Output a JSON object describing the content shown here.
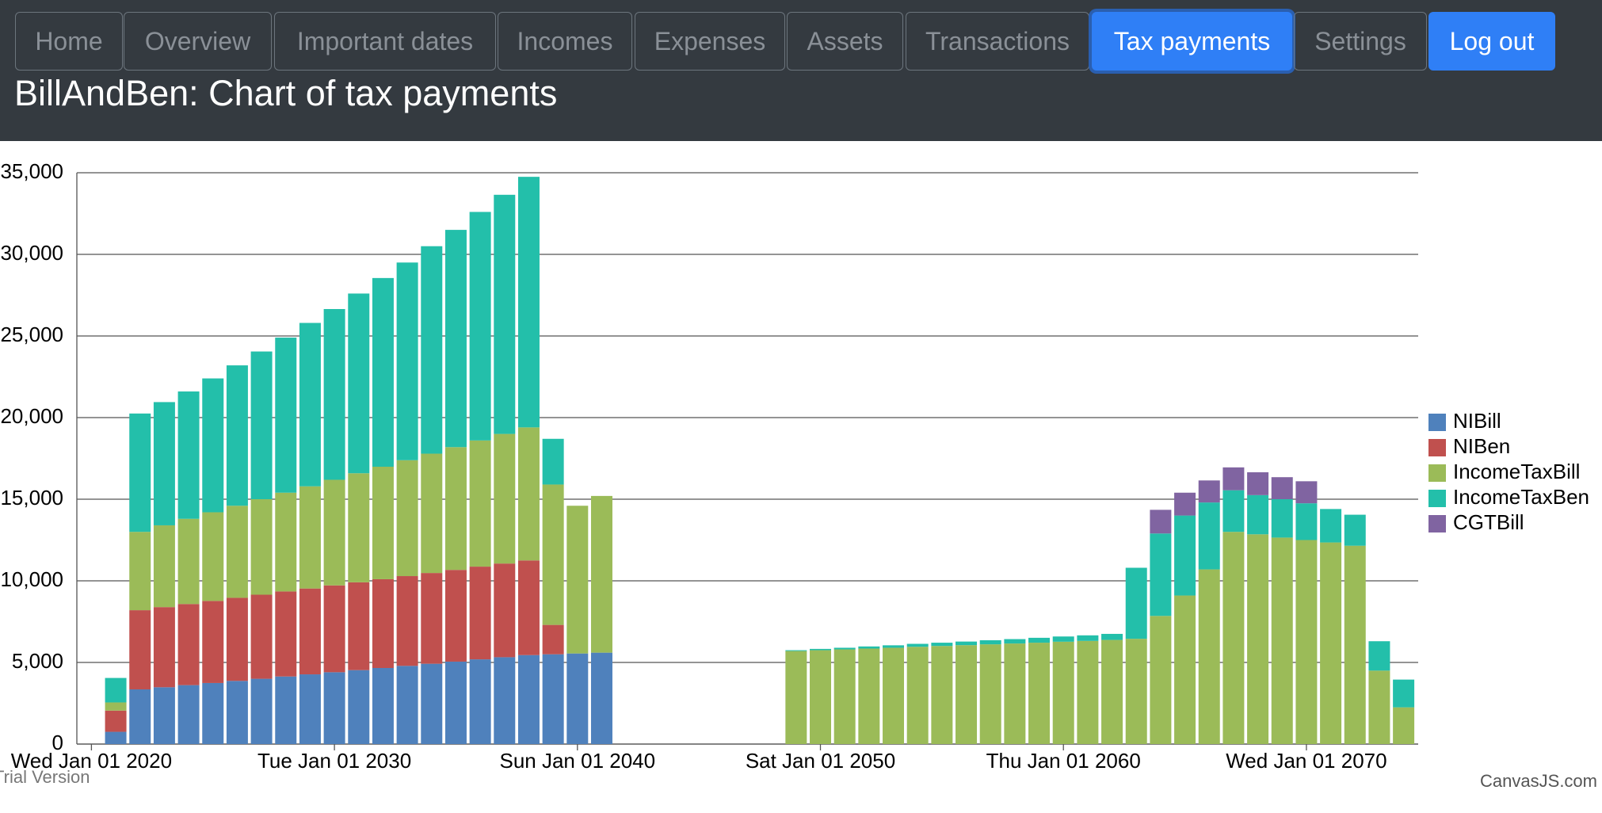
{
  "nav": {
    "items": [
      {
        "label": "Home"
      },
      {
        "label": "Overview"
      },
      {
        "label": "Important dates"
      },
      {
        "label": "Incomes"
      },
      {
        "label": "Expenses"
      },
      {
        "label": "Assets"
      },
      {
        "label": "Transactions"
      },
      {
        "label": "Tax payments"
      },
      {
        "label": "Settings"
      },
      {
        "label": "Log out"
      }
    ]
  },
  "header": {
    "title": "BillAndBen: Chart of tax payments"
  },
  "chart_data": {
    "type": "stacked-bar",
    "x": [
      2021,
      2022,
      2023,
      2024,
      2025,
      2026,
      2027,
      2028,
      2029,
      2030,
      2031,
      2032,
      2033,
      2034,
      2035,
      2036,
      2037,
      2038,
      2039,
      2040,
      2041,
      2049,
      2050,
      2051,
      2052,
      2053,
      2054,
      2055,
      2056,
      2057,
      2058,
      2059,
      2060,
      2061,
      2062,
      2063,
      2064,
      2065,
      2066,
      2067,
      2068,
      2069,
      2070,
      2071,
      2072,
      2073,
      2074
    ],
    "xlim": [
      2019.4,
      2074.6
    ],
    "xticks": [
      {
        "value": 2020,
        "label": "Wed Jan 01 2020"
      },
      {
        "value": 2030,
        "label": "Tue Jan 01 2030"
      },
      {
        "value": 2040,
        "label": "Sun Jan 01 2040"
      },
      {
        "value": 2050,
        "label": "Sat Jan 01 2050"
      },
      {
        "value": 2060,
        "label": "Thu Jan 01 2060"
      },
      {
        "value": 2070,
        "label": "Wed Jan 01 2070"
      }
    ],
    "ylim": [
      0,
      35000
    ],
    "yticks": [
      0,
      {
        "value": 5000,
        "label": "5,000"
      },
      {
        "value": 10000,
        "label": "10,000"
      },
      {
        "value": 15000,
        "label": "15,000"
      },
      {
        "value": 20000,
        "label": "20,000"
      },
      {
        "value": 25000,
        "label": "25,000"
      },
      {
        "value": 30000,
        "label": "30,000"
      },
      {
        "value": 35000,
        "label": "35,000"
      }
    ],
    "grid": true,
    "legend": "right",
    "series": [
      {
        "name": "NIBill",
        "color": "#4F81BC",
        "values": [
          750,
          3350,
          3480,
          3610,
          3740,
          3870,
          4000,
          4140,
          4270,
          4400,
          4530,
          4660,
          4790,
          4920,
          5050,
          5190,
          5320,
          5450,
          5500,
          5550,
          5600,
          0,
          0,
          0,
          0,
          0,
          0,
          0,
          0,
          0,
          0,
          0,
          0,
          0,
          0,
          0,
          0,
          0,
          0,
          0,
          0,
          0,
          0,
          0,
          0,
          0,
          0
        ]
      },
      {
        "name": "NIBen",
        "color": "#C0504E",
        "values": [
          1300,
          4850,
          4910,
          4970,
          5030,
          5090,
          5150,
          5210,
          5260,
          5320,
          5380,
          5440,
          5500,
          5560,
          5620,
          5680,
          5740,
          5800,
          1800,
          0,
          0,
          0,
          0,
          0,
          0,
          0,
          0,
          0,
          0,
          0,
          0,
          0,
          0,
          0,
          0,
          0,
          0,
          0,
          0,
          0,
          0,
          0,
          0,
          0,
          0,
          0,
          0
        ]
      },
      {
        "name": "IncomeTaxBill",
        "color": "#9BBB58",
        "values": [
          500,
          4800,
          5010,
          5220,
          5430,
          5640,
          5850,
          6050,
          6260,
          6470,
          6680,
          6890,
          7100,
          7310,
          7520,
          7730,
          7940,
          8150,
          8600,
          9050,
          9600,
          5700,
          5750,
          5800,
          5850,
          5900,
          5960,
          6010,
          6060,
          6110,
          6160,
          6210,
          6270,
          6320,
          6380,
          6450,
          7850,
          9100,
          10700,
          13000,
          12850,
          12650,
          12500,
          12350,
          12150,
          4500,
          2250
        ]
      },
      {
        "name": "IncomeTaxBen",
        "color": "#23BFAA",
        "values": [
          1500,
          7250,
          7550,
          7800,
          8200,
          8600,
          9050,
          9500,
          10010,
          10460,
          11010,
          11560,
          12110,
          12710,
          13310,
          14000,
          14650,
          15350,
          2800,
          0,
          0,
          50,
          80,
          100,
          130,
          150,
          180,
          200,
          220,
          250,
          270,
          300,
          320,
          340,
          370,
          4350,
          5050,
          4900,
          4100,
          2550,
          2400,
          2350,
          2250,
          2050,
          1900,
          1800,
          1700
        ]
      },
      {
        "name": "CGTBill",
        "color": "#8064A1",
        "values": [
          0,
          0,
          0,
          0,
          0,
          0,
          0,
          0,
          0,
          0,
          0,
          0,
          0,
          0,
          0,
          0,
          0,
          0,
          0,
          0,
          0,
          0,
          0,
          0,
          0,
          0,
          0,
          0,
          0,
          0,
          0,
          0,
          0,
          0,
          0,
          0,
          1450,
          1400,
          1350,
          1400,
          1400,
          1350,
          1350,
          0,
          0,
          0,
          0
        ]
      }
    ],
    "watermark": "Trial Version",
    "credit": "CanvasJS.com"
  }
}
